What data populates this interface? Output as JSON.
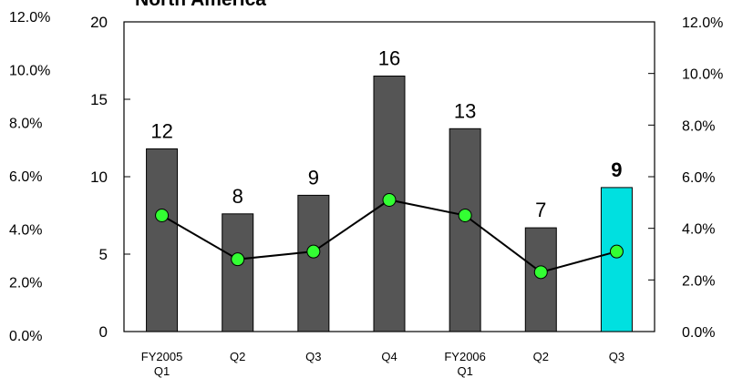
{
  "chart_data": {
    "type": "bar",
    "title": "North America",
    "categories": [
      "FY2005 Q1",
      "Q2",
      "Q3",
      "Q4",
      "FY2006 Q1",
      "Q2",
      "Q3"
    ],
    "category_lines": [
      [
        "FY2005",
        "Q1"
      ],
      [
        "Q2"
      ],
      [
        "Q3"
      ],
      [
        "Q4"
      ],
      [
        "FY2006",
        "Q1"
      ],
      [
        "Q2"
      ],
      [
        "Q3"
      ]
    ],
    "bar_values": [
      11.8,
      7.6,
      8.8,
      16.5,
      13.1,
      6.7,
      9.3
    ],
    "bar_labels": [
      "12",
      "8",
      "9",
      "16",
      "13",
      "7",
      "9"
    ],
    "line_values_pct": [
      4.5,
      2.8,
      3.1,
      5.1,
      4.5,
      2.3,
      3.1
    ],
    "left_axis": {
      "min": 0,
      "max": 20,
      "ticks": [
        "0",
        "5",
        "10",
        "15",
        "20"
      ]
    },
    "right_axis": {
      "min": 0,
      "max": 12,
      "ticks": [
        "0.0%",
        "2.0%",
        "4.0%",
        "6.0%",
        "8.0%",
        "10.0%",
        "12.0%"
      ]
    },
    "outer_left_ticks": [
      "0.0%",
      "2.0%",
      "4.0%",
      "6.0%",
      "8.0%",
      "10.0%",
      "12.0%"
    ],
    "highlight_index": 6,
    "grid": false,
    "legend": "none"
  },
  "colors": {
    "bar": "#555555",
    "bar_highlight": "#00e0e0",
    "line": "#000000",
    "marker": "#33ff33",
    "axis": "#000000"
  }
}
